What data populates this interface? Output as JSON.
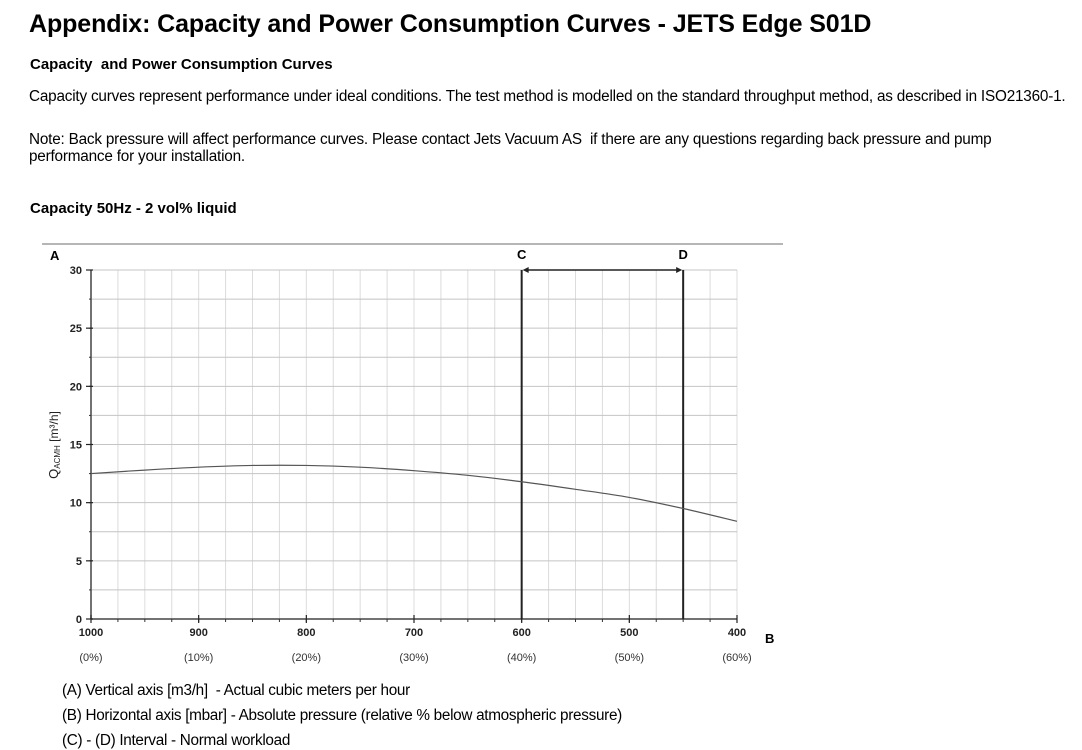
{
  "page": {
    "title": "Appendix: Capacity and Power Consumption Curves - JETS Edge S01D",
    "section_heading": "Capacity  and Power Consumption Curves",
    "intro_paragraph": "Capacity curves represent performance under ideal conditions. The test method is modelled on the standard throughput method, as described in ISO21360-1.",
    "note_paragraph": "Note: Back pressure will affect performance curves. Please contact Jets Vacuum AS  if there are any questions regarding back pressure and pump performance for your installation.",
    "chart_heading": "Capacity 50Hz - 2 vol% liquid"
  },
  "chart_data": {
    "type": "line",
    "title": "Capacity 50Hz - 2 vol% liquid",
    "axis_marker_y": "A",
    "axis_marker_x": "B",
    "ylabel_main": "Q",
    "ylabel_sub": "ACMH",
    "ylabel_unit": " [m³/h]",
    "xlabel": "",
    "xlim": [
      1000,
      400
    ],
    "ylim": [
      0,
      30
    ],
    "grid": true,
    "x_minor_step": 25,
    "y_minor_step": 2.5,
    "x_ticks": [
      {
        "value": 1000,
        "label": "1000",
        "pct": "(0%)"
      },
      {
        "value": 900,
        "label": "900",
        "pct": "(10%)"
      },
      {
        "value": 800,
        "label": "800",
        "pct": "(20%)"
      },
      {
        "value": 700,
        "label": "700",
        "pct": "(30%)"
      },
      {
        "value": 600,
        "label": "600",
        "pct": "(40%)"
      },
      {
        "value": 500,
        "label": "500",
        "pct": "(50%)"
      },
      {
        "value": 400,
        "label": "400",
        "pct": "(60%)"
      }
    ],
    "y_ticks": [
      {
        "value": 0,
        "label": "0"
      },
      {
        "value": 5,
        "label": "5"
      },
      {
        "value": 10,
        "label": "10"
      },
      {
        "value": 15,
        "label": "15"
      },
      {
        "value": 20,
        "label": "20"
      },
      {
        "value": 25,
        "label": "25"
      },
      {
        "value": 30,
        "label": "30"
      }
    ],
    "series": [
      {
        "name": "Capacity",
        "x": [
          1000,
          950,
          900,
          850,
          800,
          750,
          700,
          650,
          600,
          550,
          500,
          450,
          400
        ],
        "y": [
          12.5,
          12.8,
          13.05,
          13.2,
          13.2,
          13.05,
          12.75,
          12.35,
          11.8,
          11.15,
          10.45,
          9.5,
          8.4
        ]
      }
    ],
    "interval": {
      "start": {
        "value": 600,
        "label": "C"
      },
      "end": {
        "value": 450,
        "label": "D"
      },
      "description": "Normal workload"
    },
    "legend_lines": [
      "(A) Vertical axis [m3/h]  - Actual cubic meters per hour",
      "(B) Horizontal axis [mbar] - Absolute pressure (relative % below atmospheric pressure)",
      "(C) - (D) Interval - Normal workload"
    ]
  }
}
